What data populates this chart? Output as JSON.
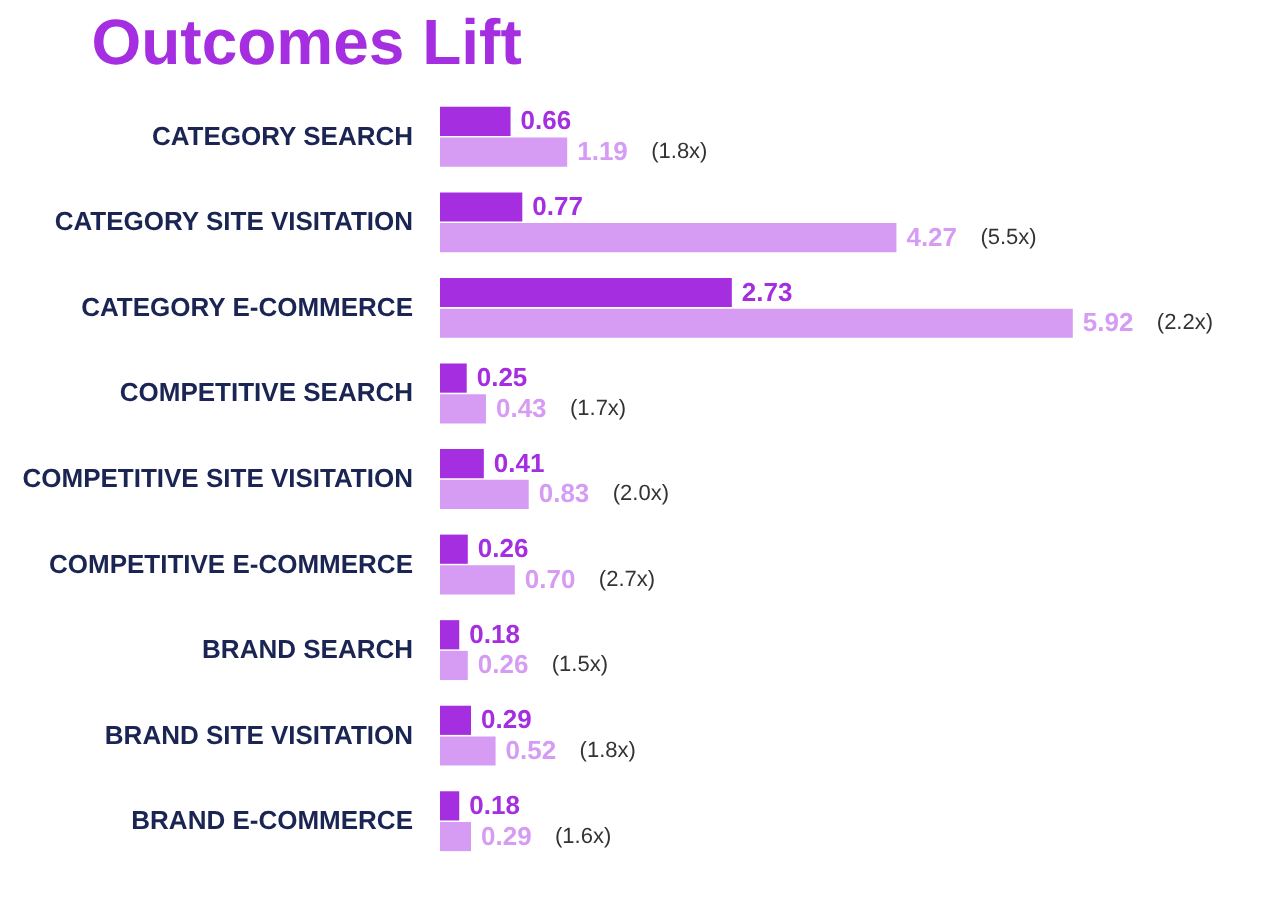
{
  "chart_data": {
    "type": "bar",
    "orientation": "horizontal",
    "title": "Outcomes Lift",
    "categories": [
      "CATEGORY SEARCH",
      "CATEGORY SITE VISITATION",
      "CATEGORY E-COMMERCE",
      "COMPETITIVE SEARCH",
      "COMPETITIVE SITE VISITATION",
      "COMPETITIVE E-COMMERCE",
      "BRAND SEARCH",
      "BRAND SITE VISITATION",
      "BRAND E-COMMERCE"
    ],
    "series": [
      {
        "color": "#a42ee0",
        "values": [
          0.66,
          0.77,
          2.73,
          0.25,
          0.41,
          0.26,
          0.18,
          0.29,
          0.18
        ],
        "value_labels": [
          "0.66",
          "0.77",
          "2.73",
          "0.25",
          "0.41",
          "0.26",
          "0.18",
          "0.29",
          "0.18"
        ]
      },
      {
        "color": "#d69cf3",
        "values": [
          1.19,
          4.27,
          5.92,
          0.43,
          0.83,
          0.7,
          0.26,
          0.52,
          0.29
        ],
        "value_labels": [
          "1.19",
          "4.27",
          "5.92",
          "0.43",
          "0.83",
          "0.70",
          "0.26",
          "0.52",
          "0.29"
        ]
      }
    ],
    "annotations": [
      "(1.8x)",
      "(5.5x)",
      "(2.2x)",
      "(1.7x)",
      "(2.0x)",
      "(2.7x)",
      "(1.5x)",
      "(1.8x)",
      "(1.6x)"
    ]
  }
}
